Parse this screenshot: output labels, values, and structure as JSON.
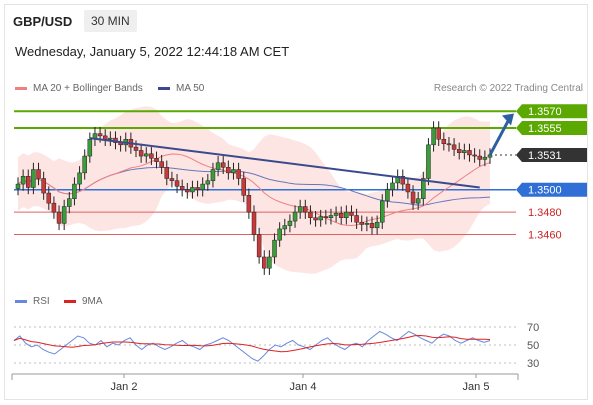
{
  "header": {
    "symbol": "GBP/USD",
    "timeframe": "30 MIN",
    "datetime": "Wednesday, January 5, 2022 12:44:18 AM CET"
  },
  "legend": {
    "ma20_label": "MA 20 + Bollinger Bands",
    "ma50_label": "MA 50",
    "copyright": "Research © 2022 Trading Central",
    "rsi_label": "RSI",
    "ma9_label": "9MA"
  },
  "colors": {
    "ma20": "#f08080",
    "bollinger_fill": "#fde0df",
    "ma50": "#6677bb",
    "trendline": "#3b4a8c",
    "resistance": "#5aa800",
    "pivot": "#2f6fd6",
    "support": "#e06060",
    "candle_up": "#3a9d3a",
    "candle_down": "#c83a3a",
    "rsi": "#6688dd",
    "rsi_ma": "#dd2222",
    "last_price_tag": "#333333",
    "arrow": "#2e5fa0"
  },
  "chart_data": [
    {
      "type": "candlestick",
      "instrument": "GBP/USD",
      "timeframe": "30 MIN",
      "x_ticks": [
        "Jan 2",
        "Jan 4",
        "Jan 5"
      ],
      "price_levels": [
        {
          "label": "1.3570",
          "value": 1.357,
          "kind": "resistance"
        },
        {
          "label": "1.3555",
          "value": 1.3555,
          "kind": "resistance"
        },
        {
          "label": "1.3531",
          "value": 1.3531,
          "kind": "last"
        },
        {
          "label": "1.3500",
          "value": 1.35,
          "kind": "pivot"
        },
        {
          "label": "1.3480",
          "value": 1.348,
          "kind": "support"
        },
        {
          "label": "1.3460",
          "value": 1.346,
          "kind": "support"
        }
      ],
      "ylim": [
        1.3415,
        1.358
      ],
      "closes": [
        1.3505,
        1.3512,
        1.3502,
        1.3518,
        1.351,
        1.3497,
        1.3488,
        1.348,
        1.347,
        1.3485,
        1.3492,
        1.3505,
        1.3515,
        1.353,
        1.3545,
        1.355,
        1.3548,
        1.3545,
        1.3546,
        1.3542,
        1.354,
        1.3545,
        1.3538,
        1.3535,
        1.353,
        1.3532,
        1.3528,
        1.3525,
        1.352,
        1.351,
        1.3508,
        1.3503,
        1.35,
        1.3498,
        1.3502,
        1.35,
        1.3505,
        1.3508,
        1.3518,
        1.3524,
        1.352,
        1.3515,
        1.3518,
        1.351,
        1.3495,
        1.348,
        1.346,
        1.344,
        1.343,
        1.344,
        1.3455,
        1.3465,
        1.3468,
        1.3472,
        1.348,
        1.3485,
        1.348,
        1.3475,
        1.3473,
        1.3476,
        1.3475,
        1.3477,
        1.3479,
        1.3475,
        1.348,
        1.3477,
        1.3471,
        1.3469,
        1.347,
        1.3466,
        1.3471,
        1.349,
        1.35,
        1.3506,
        1.3512,
        1.3505,
        1.3498,
        1.3488,
        1.3492,
        1.351,
        1.354,
        1.3555,
        1.3545,
        1.3541,
        1.354,
        1.3536,
        1.3533,
        1.3535,
        1.3531,
        1.353,
        1.3527,
        1.3529,
        1.3531
      ],
      "rsi": {
        "levels": [
          70,
          50,
          30
        ],
        "values": [
          55,
          60,
          52,
          48,
          50,
          45,
          42,
          40,
          45,
          50,
          55,
          60,
          58,
          52,
          50,
          55,
          48,
          52,
          50,
          55,
          58,
          50,
          45,
          50,
          52,
          48,
          45,
          48,
          52,
          55,
          50,
          48,
          45,
          50,
          52,
          55,
          58,
          55,
          50,
          45,
          40,
          35,
          32,
          38,
          45,
          50,
          48,
          52,
          55,
          50,
          48,
          45,
          50,
          55,
          58,
          52,
          48,
          45,
          50,
          52,
          48,
          55,
          60,
          65,
          62,
          58,
          55,
          60,
          65,
          62,
          58,
          55,
          52,
          58,
          62,
          60,
          55,
          52,
          55,
          58,
          55,
          53,
          55
        ]
      }
    }
  ]
}
